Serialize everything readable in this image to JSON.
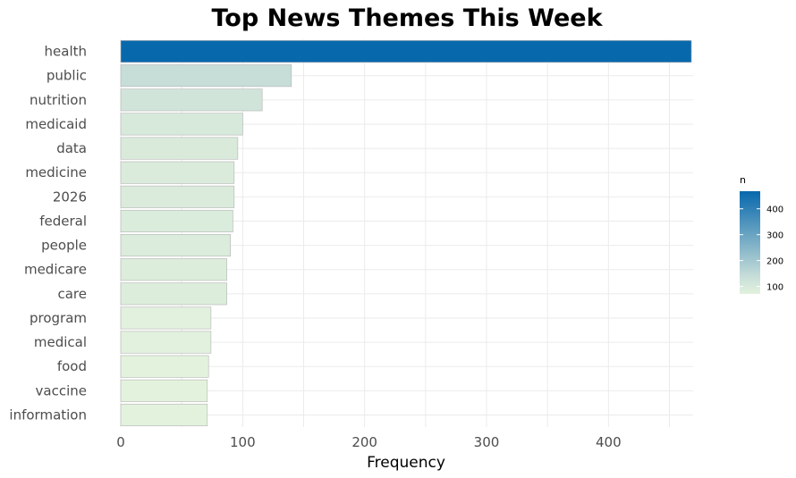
{
  "chart_data": {
    "type": "bar",
    "orientation": "horizontal",
    "title": "Top News Themes This Week",
    "xlabel": "Frequency",
    "ylabel": "",
    "categories": [
      "health",
      "public",
      "nutrition",
      "medicaid",
      "data",
      "medicine",
      "2026",
      "federal",
      "people",
      "medicare",
      "care",
      "program",
      "medical",
      "food",
      "vaccine",
      "information"
    ],
    "values": [
      468,
      140,
      116,
      100,
      96,
      93,
      93,
      92,
      90,
      87,
      87,
      74,
      74,
      72,
      71,
      71
    ],
    "xlim": [
      0,
      470
    ],
    "xticks": [
      0,
      100,
      200,
      300,
      400
    ],
    "grid": true,
    "legend": {
      "title": "n",
      "placement": "right",
      "ticks": [
        100,
        200,
        300,
        400
      ],
      "min": 71,
      "max": 468,
      "color_low": "#e3f2dd",
      "color_mid": "#c5dcd8",
      "color_high": "#0868ac"
    }
  }
}
